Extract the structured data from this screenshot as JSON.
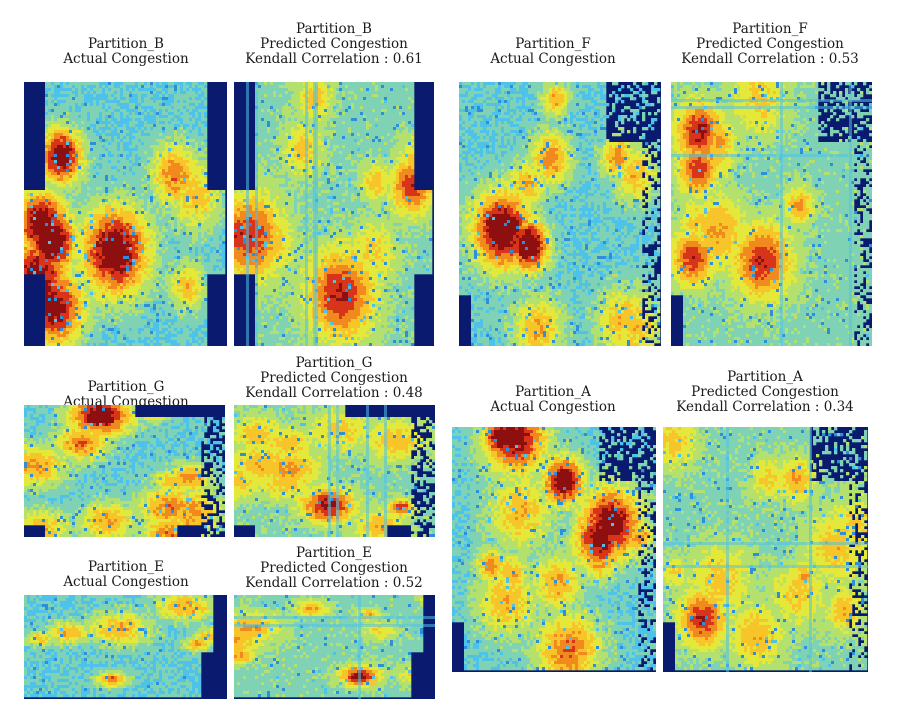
{
  "figure": {
    "colors": {
      "background": "#ffffff",
      "title_text": "#1a1a1a",
      "colormap": [
        "#0a1a6e",
        "#1f4fb8",
        "#2f8ed8",
        "#4ec2e8",
        "#7fd3b4",
        "#b4e06e",
        "#e3e83a",
        "#f7c42a",
        "#f08a1e",
        "#d8341a",
        "#8e0f0f"
      ]
    }
  },
  "chart_data": [
    {
      "type": "heatmap",
      "id": "B-actual",
      "partition": "Partition_B",
      "title_lines": [
        "Partition_B",
        "Actual Congestion"
      ],
      "kendall_correlation": null,
      "colormap": "jet"
    },
    {
      "type": "heatmap",
      "id": "B-predicted",
      "partition": "Partition_B",
      "title_lines": [
        "Partition_B",
        "Predicted Congestion",
        "Kendall Correlation : 0.61"
      ],
      "kendall_correlation": 0.61,
      "colormap": "jet"
    },
    {
      "type": "heatmap",
      "id": "F-actual",
      "partition": "Partition_F",
      "title_lines": [
        "Partition_F",
        "Actual Congestion"
      ],
      "kendall_correlation": null,
      "colormap": "jet"
    },
    {
      "type": "heatmap",
      "id": "F-predicted",
      "partition": "Partition_F",
      "title_lines": [
        "Partition_F",
        "Predicted Congestion",
        "Kendall Correlation : 0.53"
      ],
      "kendall_correlation": 0.53,
      "colormap": "jet"
    },
    {
      "type": "heatmap",
      "id": "G-actual",
      "partition": "Partition_G",
      "title_lines": [
        "Partition_G",
        "Actual Congestion"
      ],
      "kendall_correlation": null,
      "colormap": "jet"
    },
    {
      "type": "heatmap",
      "id": "G-predicted",
      "partition": "Partition_G",
      "title_lines": [
        "Partition_G",
        "Predicted Congestion",
        "Kendall Correlation : 0.48"
      ],
      "kendall_correlation": 0.48,
      "colormap": "jet"
    },
    {
      "type": "heatmap",
      "id": "A-actual",
      "partition": "Partition_A",
      "title_lines": [
        "Partition_A",
        "Actual Congestion"
      ],
      "kendall_correlation": null,
      "colormap": "jet"
    },
    {
      "type": "heatmap",
      "id": "A-predicted",
      "partition": "Partition_A",
      "title_lines": [
        "Partition_A",
        "Predicted Congestion",
        "Kendall Correlation : 0.34"
      ],
      "kendall_correlation": 0.34,
      "colormap": "jet"
    },
    {
      "type": "heatmap",
      "id": "E-actual",
      "partition": "Partition_E",
      "title_lines": [
        "Partition_E",
        "Actual Congestion"
      ],
      "kendall_correlation": null,
      "colormap": "jet"
    },
    {
      "type": "heatmap",
      "id": "E-predicted",
      "partition": "Partition_E",
      "title_lines": [
        "Partition_E",
        "Predicted Congestion",
        "Kendall Correlation : 0.52"
      ],
      "kendall_correlation": 0.52,
      "colormap": "jet"
    }
  ]
}
